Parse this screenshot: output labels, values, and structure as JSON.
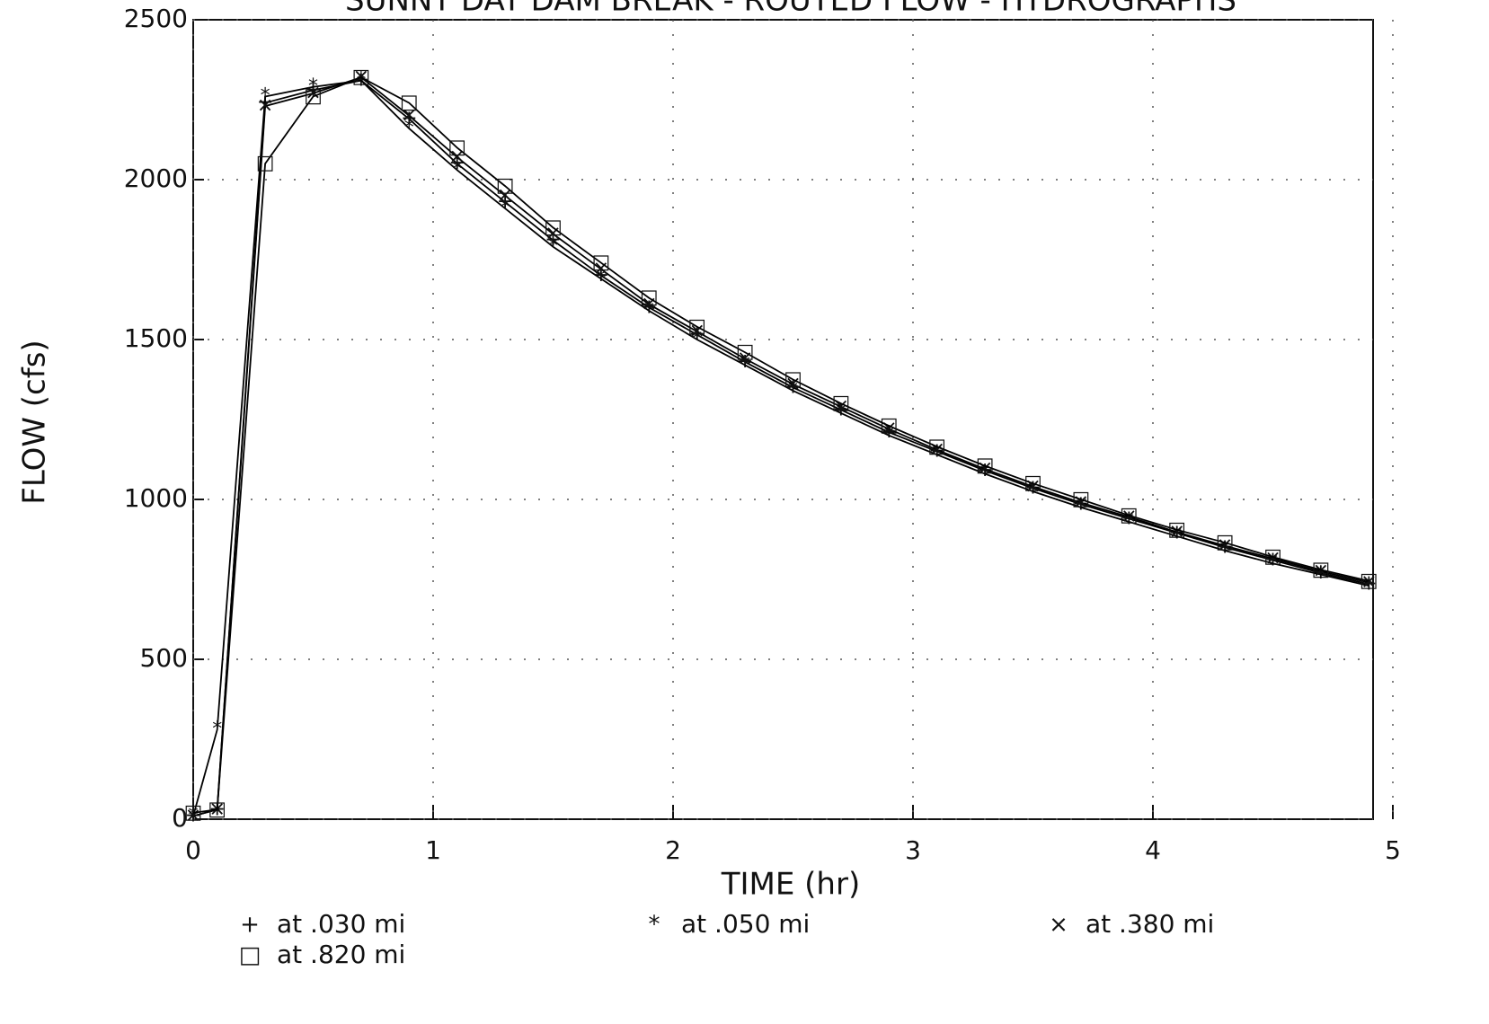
{
  "chart_data": {
    "type": "line",
    "title": "SUNNY DAY DAM BREAK - ROUTED FLOW - HYDROGRAPHS",
    "x_label": "TIME  (hr)",
    "y_label": "FLOW  (cfs)",
    "x": [
      0,
      0.1,
      0.3,
      0.5,
      0.7,
      0.9,
      1.1,
      1.3,
      1.5,
      1.7,
      1.9,
      2.1,
      2.3,
      2.5,
      2.7,
      2.9,
      3.1,
      3.3,
      3.5,
      3.7,
      3.9,
      4.1,
      4.3,
      4.5,
      4.7,
      4.9
    ],
    "series": [
      {
        "name": "at .030 mi",
        "marker": "+",
        "color": "#000000",
        "values": [
          10,
          30,
          2240,
          2280,
          2310,
          2190,
          2050,
          1930,
          1810,
          1700,
          1600,
          1515,
          1430,
          1350,
          1280,
          1210,
          1150,
          1090,
          1035,
          985,
          940,
          895,
          850,
          810,
          770,
          735
        ]
      },
      {
        "name": "at .050 mi",
        "marker": "*",
        "color": "#000000",
        "values": [
          10,
          280,
          2260,
          2290,
          2310,
          2160,
          2030,
          1910,
          1790,
          1690,
          1590,
          1500,
          1420,
          1340,
          1270,
          1200,
          1140,
          1080,
          1025,
          975,
          930,
          885,
          840,
          800,
          765,
          730
        ]
      },
      {
        "name": "at .380 mi",
        "marker": "×",
        "color": "#000000",
        "values": [
          10,
          30,
          2230,
          2270,
          2320,
          2200,
          2070,
          1950,
          1830,
          1720,
          1610,
          1525,
          1440,
          1360,
          1290,
          1220,
          1155,
          1095,
          1040,
          990,
          945,
          898,
          855,
          815,
          775,
          740
        ]
      },
      {
        "name": "at .820 mi",
        "marker": "□",
        "color": "#000000",
        "values": [
          20,
          30,
          2050,
          2260,
          2320,
          2240,
          2100,
          1980,
          1850,
          1740,
          1630,
          1540,
          1460,
          1375,
          1300,
          1230,
          1165,
          1105,
          1050,
          1000,
          950,
          905,
          865,
          820,
          780,
          745
        ]
      }
    ],
    "xlim": [
      0,
      5
    ],
    "xticks": [
      0,
      1,
      2,
      3,
      4,
      5
    ],
    "ylim": [
      0,
      2500
    ],
    "yticks": [
      0,
      500,
      1000,
      1500,
      2000,
      2500
    ],
    "grid": true
  }
}
